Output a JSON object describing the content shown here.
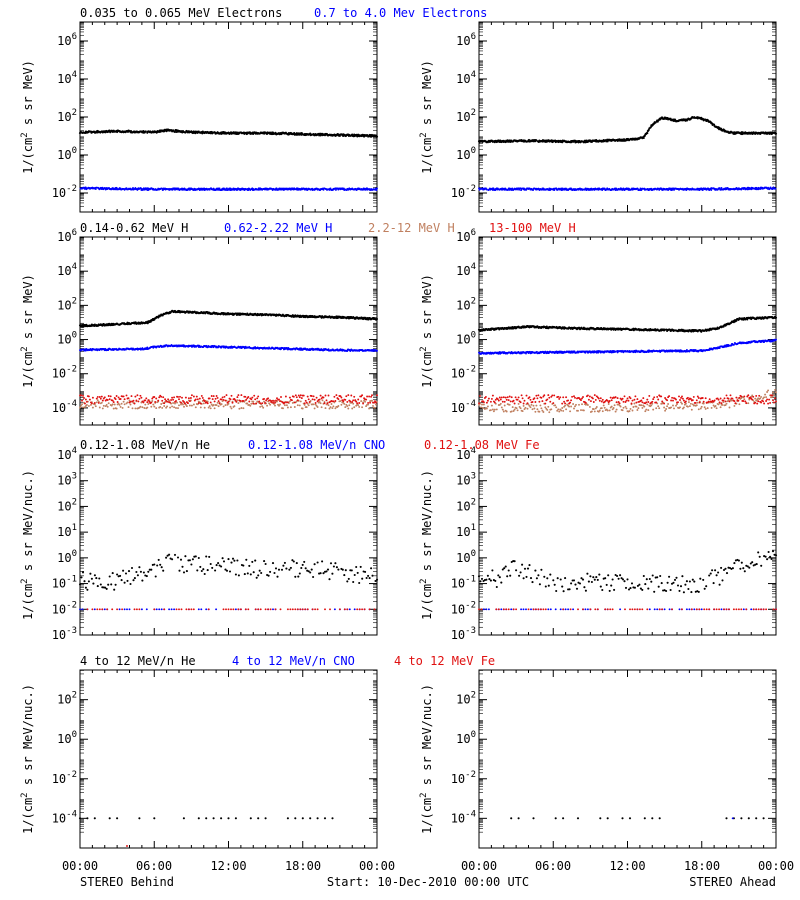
{
  "colors": {
    "background": "#ffffff",
    "axis": "#000000",
    "black": "#000000",
    "blue": "#0000ff",
    "tan": "#c08060",
    "red": "#e01010"
  },
  "footer": {
    "left": "STEREO Behind",
    "center": "Start: 10-Dec-2010 00:00 UTC",
    "right": "STEREO Ahead"
  },
  "x_tick_labels": [
    "00:00",
    "06:00",
    "12:00",
    "18:00",
    "00:00"
  ],
  "rows": [
    {
      "legend": [
        {
          "text": "0.035 to 0.065 MeV Electrons",
          "color": "black"
        },
        {
          "text": "0.7 to 4.0 Mev Electrons",
          "color": "blue"
        }
      ]
    },
    {
      "legend": [
        {
          "text": "0.14-0.62 MeV H",
          "color": "black"
        },
        {
          "text": "0.62-2.22 MeV H",
          "color": "blue"
        },
        {
          "text": "2.2-12 MeV H",
          "color": "tan"
        },
        {
          "text": "13-100 MeV H",
          "color": "red"
        }
      ]
    },
    {
      "legend": [
        {
          "text": "0.12-1.08 MeV/n He",
          "color": "black"
        },
        {
          "text": "0.12-1.08 MeV/n CNO",
          "color": "blue"
        },
        {
          "text": "0.12-1.08 MeV Fe",
          "color": "red"
        }
      ]
    },
    {
      "legend": [
        {
          "text": "4 to 12 MeV/n He",
          "color": "black"
        },
        {
          "text": "4 to 12 MeV/n CNO",
          "color": "blue"
        },
        {
          "text": "4 to 12 MeV Fe",
          "color": "red"
        }
      ]
    }
  ],
  "chart_data": [
    {
      "type": "scatter",
      "panel": "electrons-behind",
      "scale": "log",
      "x_unit": "hours",
      "xlim": [
        0,
        24
      ],
      "ylim_exp": [
        -3,
        7
      ],
      "y_ticks": [
        {
          "exp": 6,
          "label": "10^6"
        },
        {
          "exp": 4,
          "label": "10^4"
        },
        {
          "exp": 2,
          "label": "10^2"
        },
        {
          "exp": 0,
          "label": "10^0"
        },
        {
          "exp": -2,
          "label": "10^-2"
        }
      ],
      "ylabel": "1/(cm^2 s sr MeV)",
      "series": [
        {
          "color": "black",
          "points": [
            [
              0,
              1.2
            ],
            [
              3,
              1.25
            ],
            [
              6,
              1.2
            ],
            [
              7,
              1.3
            ],
            [
              9,
              1.2
            ],
            [
              12,
              1.15
            ],
            [
              15,
              1.15
            ],
            [
              18,
              1.1
            ],
            [
              21,
              1.05
            ],
            [
              24,
              1.0
            ]
          ]
        },
        {
          "color": "blue",
          "points": [
            [
              0,
              -1.75
            ],
            [
              6,
              -1.8
            ],
            [
              12,
              -1.8
            ],
            [
              18,
              -1.8
            ],
            [
              24,
              -1.8
            ]
          ]
        }
      ]
    },
    {
      "type": "scatter",
      "panel": "electrons-ahead",
      "scale": "log",
      "x_unit": "hours",
      "xlim": [
        0,
        24
      ],
      "ylim_exp": [
        -3,
        7
      ],
      "y_ticks": [
        {
          "exp": 6,
          "label": "10^6"
        },
        {
          "exp": 4,
          "label": "10^4"
        },
        {
          "exp": 2,
          "label": "10^2"
        },
        {
          "exp": 0,
          "label": "10^0"
        },
        {
          "exp": -2,
          "label": "10^-2"
        }
      ],
      "ylabel": "1/(cm^2 s sr MeV)",
      "series": [
        {
          "color": "black",
          "points": [
            [
              0,
              0.7
            ],
            [
              4,
              0.75
            ],
            [
              8,
              0.7
            ],
            [
              12,
              0.8
            ],
            [
              13.3,
              0.9
            ],
            [
              14,
              1.6
            ],
            [
              14.8,
              1.95
            ],
            [
              16,
              1.8
            ],
            [
              16.8,
              1.85
            ],
            [
              17.5,
              2.0
            ],
            [
              18.5,
              1.8
            ],
            [
              19.5,
              1.35
            ],
            [
              20.5,
              1.15
            ],
            [
              24,
              1.15
            ]
          ]
        },
        {
          "color": "blue",
          "points": [
            [
              0,
              -1.8
            ],
            [
              6,
              -1.8
            ],
            [
              12,
              -1.8
            ],
            [
              18,
              -1.8
            ],
            [
              24,
              -1.75
            ]
          ]
        }
      ]
    },
    {
      "type": "scatter",
      "panel": "protons-behind",
      "scale": "log",
      "x_unit": "hours",
      "xlim": [
        0,
        24
      ],
      "ylim_exp": [
        -5,
        6
      ],
      "y_ticks": [
        {
          "exp": 6,
          "label": "10^6"
        },
        {
          "exp": 4,
          "label": "10^4"
        },
        {
          "exp": 2,
          "label": "10^2"
        },
        {
          "exp": 0,
          "label": "10^0"
        },
        {
          "exp": -2,
          "label": "10^-2"
        },
        {
          "exp": -4,
          "label": "10^-4"
        }
      ],
      "ylabel": "1/(cm^2 s sr MeV)",
      "series": [
        {
          "color": "black",
          "points": [
            [
              0,
              0.8
            ],
            [
              3,
              0.9
            ],
            [
              5.5,
              1.0
            ],
            [
              6.5,
              1.4
            ],
            [
              7.5,
              1.65
            ],
            [
              9,
              1.6
            ],
            [
              12,
              1.5
            ],
            [
              15,
              1.45
            ],
            [
              18,
              1.35
            ],
            [
              21,
              1.3
            ],
            [
              24,
              1.2
            ]
          ]
        },
        {
          "color": "blue",
          "points": [
            [
              0,
              -0.6
            ],
            [
              5,
              -0.55
            ],
            [
              7,
              -0.35
            ],
            [
              10,
              -0.4
            ],
            [
              15,
              -0.5
            ],
            [
              20,
              -0.6
            ],
            [
              24,
              -0.65
            ]
          ]
        },
        {
          "color": "tan",
          "points": [
            [
              0,
              -3.8
            ],
            [
              12,
              -3.8
            ],
            [
              24,
              -3.8
            ]
          ]
        },
        {
          "color": "red",
          "points": [
            [
              0,
              -3.5
            ],
            [
              12,
              -3.5
            ],
            [
              24,
              -3.5
            ]
          ]
        }
      ]
    },
    {
      "type": "scatter",
      "panel": "protons-ahead",
      "scale": "log",
      "x_unit": "hours",
      "xlim": [
        0,
        24
      ],
      "ylim_exp": [
        -5,
        6
      ],
      "y_ticks": [
        {
          "exp": 6,
          "label": "10^6"
        },
        {
          "exp": 4,
          "label": "10^4"
        },
        {
          "exp": 2,
          "label": "10^2"
        },
        {
          "exp": 0,
          "label": "10^0"
        },
        {
          "exp": -2,
          "label": "10^-2"
        },
        {
          "exp": -4,
          "label": "10^-4"
        }
      ],
      "ylabel": "1/(cm^2 s sr MeV)",
      "series": [
        {
          "color": "black",
          "points": [
            [
              0,
              0.55
            ],
            [
              4,
              0.75
            ],
            [
              8,
              0.65
            ],
            [
              12,
              0.6
            ],
            [
              15,
              0.55
            ],
            [
              18,
              0.5
            ],
            [
              19.5,
              0.7
            ],
            [
              21,
              1.2
            ],
            [
              24,
              1.3
            ]
          ]
        },
        {
          "color": "blue",
          "points": [
            [
              0,
              -0.8
            ],
            [
              6,
              -0.75
            ],
            [
              12,
              -0.7
            ],
            [
              18,
              -0.65
            ],
            [
              19.5,
              -0.45
            ],
            [
              21,
              -0.2
            ],
            [
              24,
              -0.05
            ]
          ]
        },
        {
          "color": "tan",
          "points": [
            [
              0,
              -4.0
            ],
            [
              12,
              -4.0
            ],
            [
              20,
              -3.8
            ],
            [
              24,
              -3.1
            ]
          ]
        },
        {
          "color": "red",
          "points": [
            [
              0,
              -3.5
            ],
            [
              12,
              -3.5
            ],
            [
              24,
              -3.5
            ]
          ]
        }
      ]
    },
    {
      "type": "scatter",
      "panel": "ions-behind",
      "scale": "log",
      "x_unit": "hours",
      "xlim": [
        0,
        24
      ],
      "ylim_exp": [
        -3,
        4
      ],
      "y_ticks": [
        {
          "exp": 4,
          "label": "10^4"
        },
        {
          "exp": 3,
          "label": "10^3"
        },
        {
          "exp": 2,
          "label": "10^2"
        },
        {
          "exp": 1,
          "label": "10^1"
        },
        {
          "exp": 0,
          "label": "10^0"
        },
        {
          "exp": -1,
          "label": "10^-1"
        },
        {
          "exp": -2,
          "label": "10^-2"
        },
        {
          "exp": -3,
          "label": "10^-3"
        }
      ],
      "ylabel": "1/(cm^2 s sr MeV/nuc.)",
      "series": [
        {
          "color": "black",
          "points": [
            [
              0,
              -0.9
            ],
            [
              3,
              -0.9
            ],
            [
              5.5,
              -0.55
            ],
            [
              7,
              -0.15
            ],
            [
              9,
              -0.25
            ],
            [
              12,
              -0.35
            ],
            [
              15,
              -0.45
            ],
            [
              18,
              -0.4
            ],
            [
              21,
              -0.55
            ],
            [
              24,
              -0.75
            ]
          ]
        },
        {
          "color": "blue",
          "points": [
            [
              0,
              -2.0
            ],
            [
              12,
              -2.0
            ],
            [
              24,
              -2.0
            ]
          ]
        },
        {
          "color": "red",
          "points": [
            [
              0,
              -2.0
            ],
            [
              24,
              -2.0
            ]
          ]
        }
      ]
    },
    {
      "type": "scatter",
      "panel": "ions-ahead",
      "scale": "log",
      "x_unit": "hours",
      "xlim": [
        0,
        24
      ],
      "ylim_exp": [
        -3,
        4
      ],
      "y_ticks": [
        {
          "exp": 4,
          "label": "10^4"
        },
        {
          "exp": 3,
          "label": "10^3"
        },
        {
          "exp": 2,
          "label": "10^2"
        },
        {
          "exp": 1,
          "label": "10^1"
        },
        {
          "exp": 0,
          "label": "10^0"
        },
        {
          "exp": -1,
          "label": "10^-1"
        },
        {
          "exp": -2,
          "label": "10^-2"
        },
        {
          "exp": -3,
          "label": "10^-3"
        }
      ],
      "ylabel": "1/(cm^2 s sr MeV/nuc.)",
      "series": [
        {
          "color": "black",
          "points": [
            [
              0,
              -0.9
            ],
            [
              2,
              -0.75
            ],
            [
              3,
              -0.3
            ],
            [
              4,
              -0.6
            ],
            [
              6,
              -0.95
            ],
            [
              10,
              -0.95
            ],
            [
              14,
              -1.0
            ],
            [
              18,
              -1.0
            ],
            [
              20,
              -0.6
            ],
            [
              22,
              -0.15
            ],
            [
              24,
              0.0
            ]
          ]
        },
        {
          "color": "blue",
          "points": [
            [
              0,
              -2.0
            ],
            [
              12,
              -2.0
            ],
            [
              24,
              -2.0
            ]
          ]
        },
        {
          "color": "red",
          "points": [
            [
              0,
              -2.0
            ],
            [
              24,
              -2.0
            ]
          ]
        }
      ]
    },
    {
      "type": "scatter",
      "panel": "high-ions-behind",
      "scale": "log",
      "x_unit": "hours",
      "xlim": [
        0,
        24
      ],
      "ylim_exp": [
        -5.5,
        3.5
      ],
      "y_ticks": [
        {
          "exp": 2,
          "label": "10^2"
        },
        {
          "exp": 0,
          "label": "10^0"
        },
        {
          "exp": -2,
          "label": "10^-2"
        },
        {
          "exp": -4,
          "label": "10^-4"
        }
      ],
      "ylabel": "1/(cm^2 s sr MeV/nuc.)",
      "series": [
        {
          "color": "black",
          "points": [
            [
              0,
              -4
            ],
            [
              20.5,
              -4
            ]
          ]
        },
        {
          "color": "red",
          "points": [
            [
              3.8,
              -5.4
            ]
          ]
        }
      ]
    },
    {
      "type": "scatter",
      "panel": "high-ions-ahead",
      "scale": "log",
      "x_unit": "hours",
      "xlim": [
        0,
        24
      ],
      "ylim_exp": [
        -5.5,
        3.5
      ],
      "y_ticks": [
        {
          "exp": 2,
          "label": "10^2"
        },
        {
          "exp": 0,
          "label": "10^0"
        },
        {
          "exp": -2,
          "label": "10^-2"
        },
        {
          "exp": -4,
          "label": "10^-4"
        }
      ],
      "ylabel": "1/(cm^2 s sr MeV/nuc.)",
      "series": [
        {
          "color": "black",
          "points": [
            [
              2,
              -4
            ],
            [
              24,
              -4
            ]
          ]
        },
        {
          "color": "blue",
          "points": [
            [
              20.5,
              -4
            ]
          ]
        }
      ]
    }
  ]
}
